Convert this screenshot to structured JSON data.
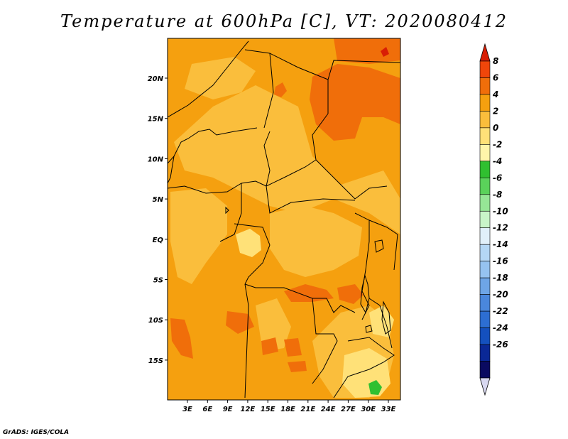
{
  "title": "Temperature at 600hPa [C], VT: 2020080412",
  "credit": "GrADS: IGES/COLA",
  "map": {
    "lon_labels": [
      "3E",
      "6E",
      "9E",
      "12E",
      "15E",
      "18E",
      "21E",
      "24E",
      "27E",
      "30E",
      "33E"
    ],
    "lat_labels": [
      "20N",
      "15N",
      "10N",
      "5N",
      "EQ",
      "5S",
      "10S",
      "15S"
    ]
  },
  "colorbar": {
    "labels": [
      "8",
      "6",
      "4",
      "2",
      "0",
      "-2",
      "-4",
      "-6",
      "-8",
      "-10",
      "-12",
      "-14",
      "-16",
      "-18",
      "-20",
      "-22",
      "-24",
      "-26"
    ],
    "colors": [
      "#d81e05",
      "#f0460a",
      "#f06e0a",
      "#f5a00f",
      "#fabe3c",
      "#ffe178",
      "#fff5aa",
      "#30c030",
      "#5ad25a",
      "#96e696",
      "#c8f5c8",
      "#e1f0fa",
      "#b4d7f5",
      "#96c3f0",
      "#6ea5e6",
      "#4a87dc",
      "#2d6ed2",
      "#1450be",
      "#0a2896",
      "#0a0a60",
      "#d8d8f0"
    ]
  }
}
